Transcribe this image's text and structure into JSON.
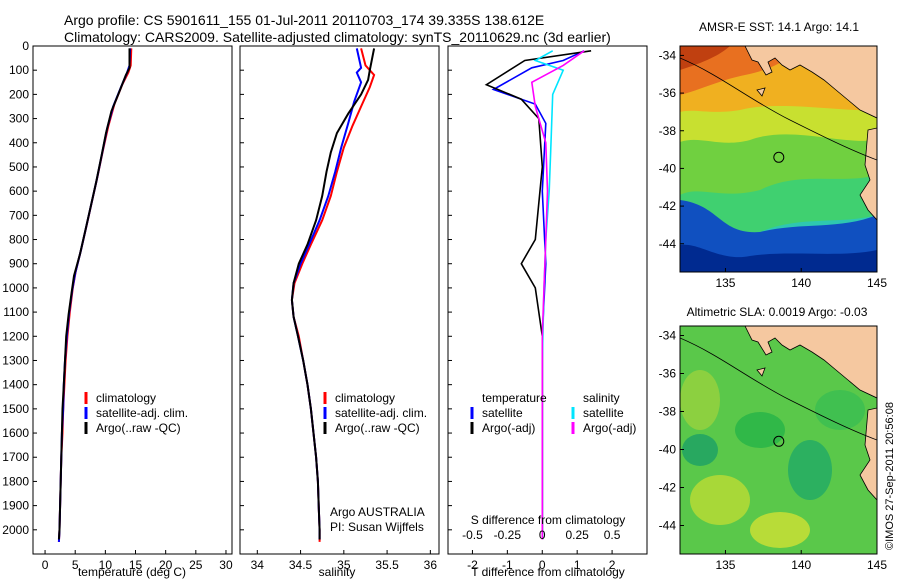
{
  "header": {
    "line1": "Argo profile: CS 5901611_155 01-Jul-2011 20110703_174 39.335S 138.612E",
    "line2": "Climatology: CARS2009. Satellite-adjusted climatology: synTS_20110629.nc (3d earlier)"
  },
  "credit": "©IMOS 27-Sep-2011 20:56:08",
  "colors": {
    "climatology": "#ff0000",
    "satellite": "#0000ff",
    "argo": "#000000",
    "salinity_satellite": "#00e5ff",
    "salinity_argo": "#ff00ff"
  },
  "chart_data": [
    {
      "type": "line",
      "xlabel": "temperature (deg C)",
      "ylabel": "",
      "xlim": [
        -2,
        31
      ],
      "ylim": [
        2100,
        0
      ],
      "xticks": [
        0,
        5,
        10,
        15,
        20,
        25,
        30
      ],
      "yticks": [
        0,
        100,
        200,
        300,
        400,
        500,
        600,
        700,
        800,
        900,
        1000,
        1100,
        1200,
        1300,
        1400,
        1500,
        1600,
        1700,
        1800,
        1900,
        2000
      ],
      "legend": [
        "climatology",
        "satellite-adj. clim.",
        "Argo(..raw -QC)"
      ],
      "series": [
        {
          "name": "climatology",
          "color": "#ff0000",
          "points": [
            [
              14.3,
              10
            ],
            [
              14.2,
              80
            ],
            [
              13.8,
              110
            ],
            [
              12.8,
              160
            ],
            [
              11.5,
              240
            ],
            [
              10.5,
              330
            ],
            [
              9.6,
              430
            ],
            [
              8.7,
              540
            ],
            [
              7.8,
              640
            ],
            [
              6.9,
              740
            ],
            [
              6.0,
              840
            ],
            [
              5.1,
              930
            ],
            [
              4.6,
              1000
            ],
            [
              4.1,
              1100
            ],
            [
              3.7,
              1200
            ],
            [
              3.4,
              1300
            ],
            [
              3.2,
              1400
            ],
            [
              3.0,
              1500
            ],
            [
              2.9,
              1600
            ],
            [
              2.7,
              1700
            ],
            [
              2.6,
              1800
            ],
            [
              2.5,
              1900
            ],
            [
              2.4,
              2000
            ],
            [
              2.3,
              2050
            ]
          ]
        },
        {
          "name": "satellite-adj. clim.",
          "color": "#0000ff",
          "points": [
            [
              14.1,
              10
            ],
            [
              14.0,
              80
            ],
            [
              13.6,
              110
            ],
            [
              12.6,
              170
            ],
            [
              11.3,
              250
            ],
            [
              10.3,
              340
            ],
            [
              9.5,
              440
            ],
            [
              8.6,
              550
            ],
            [
              7.7,
              650
            ],
            [
              6.8,
              750
            ],
            [
              5.9,
              850
            ],
            [
              5.0,
              940
            ],
            [
              4.5,
              1010
            ],
            [
              4.0,
              1100
            ],
            [
              3.6,
              1200
            ],
            [
              3.3,
              1300
            ],
            [
              3.1,
              1400
            ],
            [
              3.0,
              1500
            ],
            [
              2.8,
              1600
            ],
            [
              2.7,
              1700
            ],
            [
              2.6,
              1800
            ],
            [
              2.5,
              1900
            ],
            [
              2.4,
              2000
            ],
            [
              2.3,
              2050
            ]
          ]
        },
        {
          "name": "Argo(..raw -QC)",
          "color": "#000000",
          "points": [
            [
              14.0,
              10
            ],
            [
              14.0,
              90
            ],
            [
              13.4,
              120
            ],
            [
              12.3,
              190
            ],
            [
              11.0,
              270
            ],
            [
              10.1,
              360
            ],
            [
              9.4,
              450
            ],
            [
              8.5,
              560
            ],
            [
              7.6,
              660
            ],
            [
              6.7,
              760
            ],
            [
              5.8,
              860
            ],
            [
              4.8,
              950
            ],
            [
              4.4,
              1020
            ],
            [
              3.9,
              1110
            ],
            [
              3.5,
              1200
            ],
            [
              3.3,
              1300
            ],
            [
              3.1,
              1400
            ],
            [
              2.9,
              1500
            ],
            [
              2.8,
              1600
            ],
            [
              2.7,
              1700
            ],
            [
              2.6,
              1800
            ],
            [
              2.5,
              1900
            ],
            [
              2.4,
              2000
            ],
            [
              2.3,
              2040
            ]
          ]
        }
      ]
    },
    {
      "type": "line",
      "xlabel": "salinity",
      "xlim": [
        33.8,
        36.1
      ],
      "ylim": [
        2100,
        0
      ],
      "xticks": [
        34,
        34.5,
        35,
        35.5,
        36
      ],
      "legend": [
        "climatology",
        "satellite-adj. clim.",
        "Argo(..raw -QC)"
      ],
      "annotation": [
        "Argo AUSTRALIA",
        "PI: Susan Wijffels"
      ],
      "series": [
        {
          "name": "climatology",
          "color": "#ff0000",
          "points": [
            [
              35.2,
              10
            ],
            [
              35.25,
              80
            ],
            [
              35.35,
              120
            ],
            [
              35.3,
              170
            ],
            [
              35.2,
              250
            ],
            [
              35.1,
              330
            ],
            [
              35.0,
              420
            ],
            [
              34.92,
              520
            ],
            [
              34.85,
              620
            ],
            [
              34.75,
              720
            ],
            [
              34.62,
              820
            ],
            [
              34.52,
              900
            ],
            [
              34.43,
              980
            ],
            [
              34.4,
              1050
            ],
            [
              34.42,
              1120
            ],
            [
              34.48,
              1200
            ],
            [
              34.53,
              1300
            ],
            [
              34.58,
              1400
            ],
            [
              34.62,
              1500
            ],
            [
              34.65,
              1600
            ],
            [
              34.68,
              1700
            ],
            [
              34.7,
              1800
            ],
            [
              34.71,
              1900
            ],
            [
              34.72,
              2000
            ],
            [
              34.72,
              2050
            ]
          ]
        },
        {
          "name": "satellite-adj. clim.",
          "color": "#0000ff",
          "points": [
            [
              35.15,
              10
            ],
            [
              35.2,
              90
            ],
            [
              35.15,
              110
            ],
            [
              35.2,
              150
            ],
            [
              35.12,
              230
            ],
            [
              35.05,
              320
            ],
            [
              34.97,
              420
            ],
            [
              34.9,
              520
            ],
            [
              34.82,
              620
            ],
            [
              34.72,
              720
            ],
            [
              34.6,
              820
            ],
            [
              34.5,
              900
            ],
            [
              34.42,
              980
            ],
            [
              34.4,
              1050
            ],
            [
              34.42,
              1120
            ],
            [
              34.47,
              1200
            ],
            [
              34.53,
              1300
            ],
            [
              34.58,
              1400
            ],
            [
              34.62,
              1500
            ],
            [
              34.65,
              1600
            ],
            [
              34.68,
              1700
            ],
            [
              34.7,
              1800
            ],
            [
              34.71,
              1900
            ],
            [
              34.72,
              2000
            ],
            [
              34.72,
              2040
            ]
          ]
        },
        {
          "name": "Argo(..raw -QC)",
          "color": "#000000",
          "points": [
            [
              35.35,
              10
            ],
            [
              35.3,
              100
            ],
            [
              35.28,
              140
            ],
            [
              35.2,
              200
            ],
            [
              35.05,
              280
            ],
            [
              34.92,
              360
            ],
            [
              34.85,
              440
            ],
            [
              34.8,
              520
            ],
            [
              34.75,
              620
            ],
            [
              34.68,
              720
            ],
            [
              34.58,
              820
            ],
            [
              34.48,
              900
            ],
            [
              34.42,
              980
            ],
            [
              34.4,
              1050
            ],
            [
              34.42,
              1120
            ],
            [
              34.47,
              1200
            ],
            [
              34.53,
              1300
            ],
            [
              34.58,
              1400
            ],
            [
              34.62,
              1500
            ],
            [
              34.65,
              1600
            ],
            [
              34.68,
              1700
            ],
            [
              34.7,
              1800
            ],
            [
              34.71,
              1900
            ],
            [
              34.72,
              2000
            ],
            [
              34.72,
              2040
            ]
          ]
        }
      ]
    },
    {
      "type": "line",
      "xlabel": "T difference from climatology",
      "xlabel_top": "S difference from climatology",
      "xlim": [
        -2.7,
        3.0
      ],
      "ylim": [
        2100,
        0
      ],
      "xticks": [
        -2,
        -1,
        0,
        1,
        2
      ],
      "xticks_s": [
        "-0.5",
        "-0.25",
        "0",
        "0.25",
        "0.5"
      ],
      "legend_temperature": {
        "title": "temperature",
        "items": [
          "satellite",
          "Argo(-adj)"
        ]
      },
      "legend_salinity": {
        "title": "salinity",
        "items": [
          "satellite",
          "Argo(-adj)"
        ]
      },
      "series": [
        {
          "name": "temperature satellite",
          "color": "#0000ff",
          "points": [
            [
              1.2,
              20
            ],
            [
              0.6,
              60
            ],
            [
              -0.3,
              90
            ],
            [
              -1.4,
              180
            ],
            [
              -0.2,
              240
            ],
            [
              0.1,
              320
            ],
            [
              0,
              600
            ],
            [
              0.1,
              900
            ],
            [
              0,
              1200
            ],
            [
              0,
              2040
            ]
          ]
        },
        {
          "name": "temperature Argo(-adj)",
          "color": "#000000",
          "points": [
            [
              1.4,
              20
            ],
            [
              -0.5,
              60
            ],
            [
              -1.6,
              160
            ],
            [
              -0.6,
              220
            ],
            [
              -0.1,
              300
            ],
            [
              0,
              500
            ],
            [
              -0.2,
              800
            ],
            [
              -0.6,
              900
            ],
            [
              -0.2,
              1000
            ],
            [
              0,
              1200
            ],
            [
              0,
              2040
            ]
          ]
        },
        {
          "name": "salinity satellite",
          "color": "#00e5ff",
          "points": [
            [
              0.3,
              20
            ],
            [
              -0.2,
              60
            ],
            [
              0.6,
              100
            ],
            [
              0.3,
              200
            ],
            [
              0.25,
              400
            ],
            [
              0.2,
              600
            ],
            [
              0.1,
              800
            ],
            [
              0.05,
              1000
            ],
            [
              0,
              1300
            ],
            [
              0,
              2040
            ]
          ]
        },
        {
          "name": "salinity Argo(-adj)",
          "color": "#ff00ff",
          "points": [
            [
              1.2,
              20
            ],
            [
              0.6,
              80
            ],
            [
              -0.3,
              150
            ],
            [
              -0.2,
              250
            ],
            [
              0.1,
              400
            ],
            [
              0.15,
              600
            ],
            [
              0.1,
              800
            ],
            [
              0.05,
              1000
            ],
            [
              0,
              1200
            ],
            [
              0,
              2040
            ]
          ]
        }
      ]
    },
    {
      "type": "heatmap",
      "title": "AMSR-E SST: 14.1 Argo: 14.1",
      "xlim": [
        132,
        145
      ],
      "ylim": [
        -45.5,
        -33.5
      ],
      "xticks": [
        135,
        140,
        145
      ],
      "yticks": [
        -34,
        -36,
        -38,
        -40,
        -42,
        -44
      ],
      "argo_location": [
        138.612,
        -39.335
      ]
    },
    {
      "type": "heatmap",
      "title": "Altimetric SLA: 0.0019 Argo: -0.03",
      "xlim": [
        132,
        145
      ],
      "ylim": [
        -45.5,
        -33.5
      ],
      "xticks": [
        135,
        140,
        145
      ],
      "yticks": [
        -34,
        -36,
        -38,
        -40,
        -42,
        -44
      ],
      "argo_location": [
        138.612,
        -39.335
      ]
    }
  ]
}
